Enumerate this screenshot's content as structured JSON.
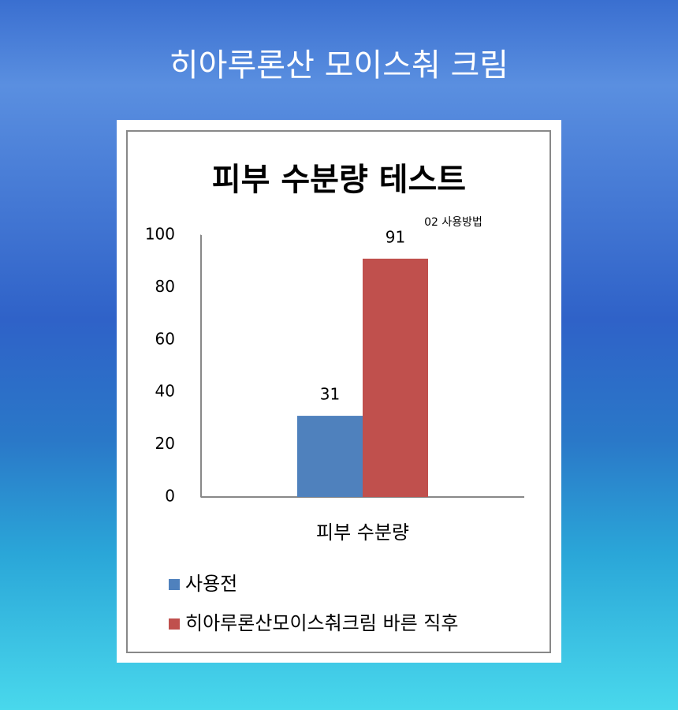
{
  "header": {
    "title": "히아루론산 모이스춰 크림"
  },
  "chart_data": {
    "type": "bar",
    "title": "피부 수분량 테스트",
    "annotation": "02 사용방법",
    "categories": [
      "피부 수분량"
    ],
    "series": [
      {
        "name": "사용전",
        "color": "#4f81bd",
        "values": [
          31
        ]
      },
      {
        "name": "히아루론산모이스춰크림 바른 직후",
        "color": "#c0504d",
        "values": [
          91
        ]
      }
    ],
    "ylim": [
      0,
      100
    ],
    "yticks": [
      0,
      20,
      40,
      60,
      80,
      100
    ],
    "grid": false
  }
}
